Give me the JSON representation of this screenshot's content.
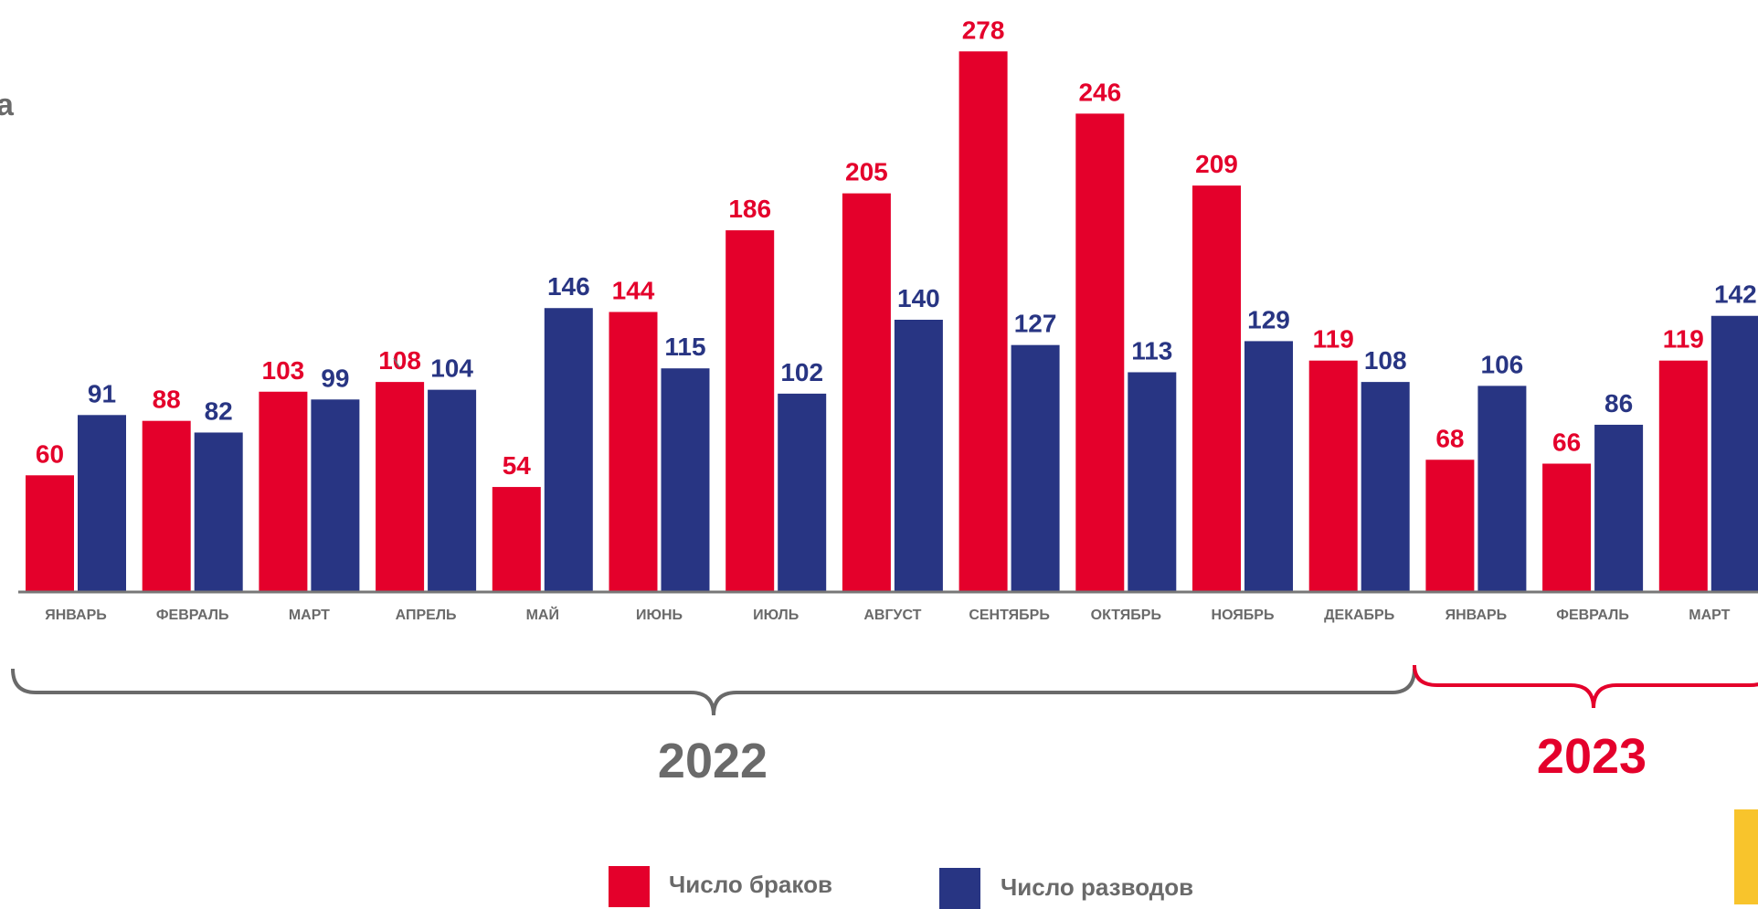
{
  "colors": {
    "marriages": "#E4002B",
    "divorces": "#283583",
    "axis": "#777777",
    "month_label": "#6a6a6a",
    "year_2022": "#6a6a6a",
    "year_2023": "#E4002B",
    "corner_accent": "#F8C42C"
  },
  "page": {
    "edge_text": "а"
  },
  "chart_data": {
    "type": "bar",
    "categories": [
      "ЯНВАРЬ",
      "ФЕВРАЛЬ",
      "МАРТ",
      "АПРЕЛЬ",
      "МАЙ",
      "ИЮНЬ",
      "ИЮЛЬ",
      "АВГУСТ",
      "СЕНТЯБРЬ",
      "ОКТЯБРЬ",
      "НОЯБРЬ",
      "ДЕКАБРЬ",
      "ЯНВАРЬ",
      "ФЕВРАЛЬ",
      "МАРТ"
    ],
    "series": [
      {
        "name": "Число браков",
        "color": "#E4002B",
        "values": [
          60,
          88,
          103,
          108,
          54,
          144,
          186,
          205,
          278,
          246,
          209,
          119,
          68,
          66,
          119
        ]
      },
      {
        "name": "Число разводов",
        "color": "#283583",
        "values": [
          91,
          82,
          99,
          104,
          146,
          115,
          102,
          140,
          127,
          113,
          129,
          108,
          106,
          86,
          142
        ]
      }
    ],
    "ylim": [
      0,
      280
    ],
    "grid": false,
    "legend_position": "bottom",
    "year_groups": [
      {
        "label": "2022",
        "first_category": 0,
        "last_category": 11,
        "color": "#6a6a6a"
      },
      {
        "label": "2023",
        "first_category": 12,
        "last_category": 14,
        "color": "#E4002B"
      }
    ]
  }
}
